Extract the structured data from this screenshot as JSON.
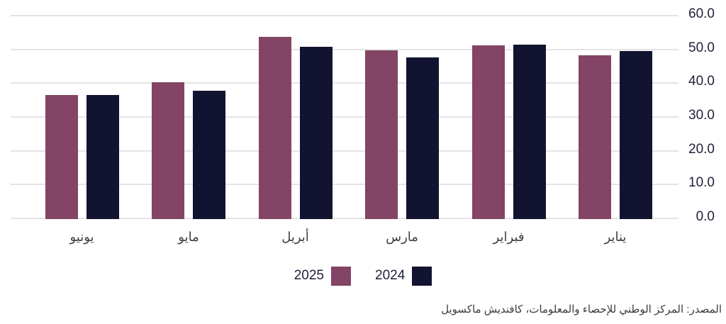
{
  "chart_data": {
    "type": "bar",
    "direction": "rtl",
    "title": "",
    "categories": [
      "يونيو",
      "مايو",
      "أبريل",
      "مارس",
      "فبراير",
      "يناير"
    ],
    "series": [
      {
        "name": "2025",
        "color": "#834465",
        "values": [
          36.7,
          40.5,
          54.0,
          50.0,
          51.5,
          48.4
        ]
      },
      {
        "name": "2024",
        "color": "#121330",
        "values": [
          36.8,
          38.0,
          51.0,
          47.8,
          51.6,
          49.7
        ]
      }
    ],
    "y_axis": {
      "min": 0,
      "max": 60,
      "ticks": [
        "60.0",
        "50.0",
        "40.0",
        "30.0",
        "20.0",
        "10.0",
        "0.0"
      ],
      "side": "right"
    },
    "grid": true,
    "legend_position": "bottom-center"
  },
  "colors": {
    "gridline": "#e4e4e6",
    "tick_text": "#21213a",
    "category_text": "#3d3d46",
    "source_text": "#3b3b3b",
    "background": "#ffffff"
  },
  "source": {
    "label": "المصدر: المركز الوطني للإحصاء والمعلومات، كافنديش ماكسويل"
  }
}
